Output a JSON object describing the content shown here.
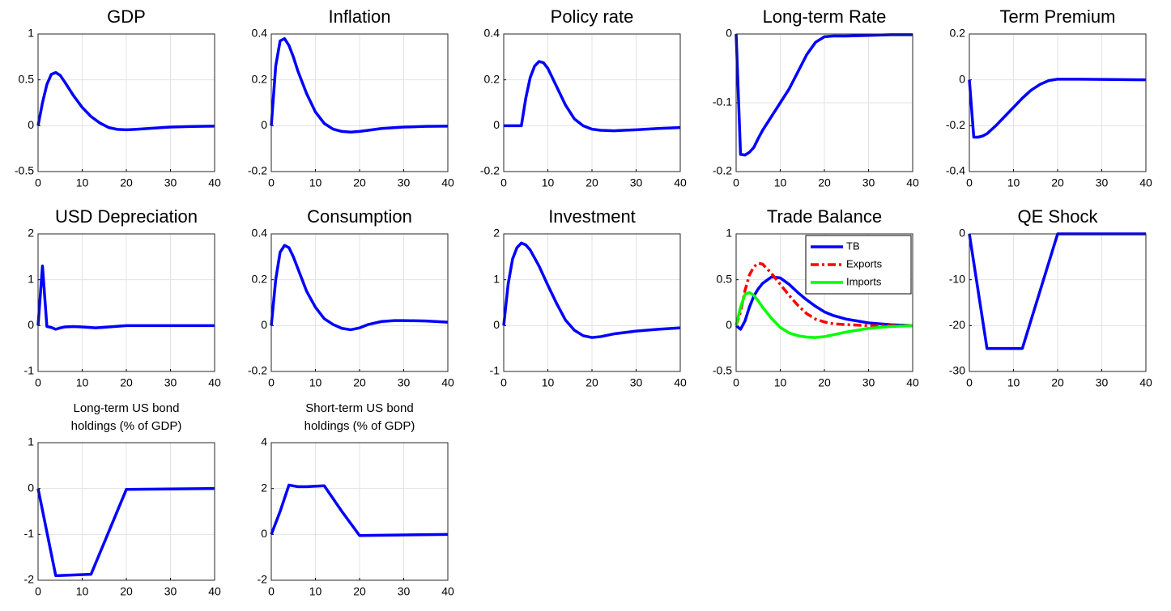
{
  "chart_data": [
    {
      "type": "line",
      "title": "GDP",
      "x": [
        0,
        1,
        2,
        3,
        4,
        5,
        6,
        8,
        10,
        12,
        14,
        16,
        18,
        20,
        22,
        25,
        30,
        35,
        40
      ],
      "values": [
        0,
        0.25,
        0.45,
        0.56,
        0.58,
        0.55,
        0.48,
        0.33,
        0.2,
        0.1,
        0.03,
        -0.02,
        -0.04,
        -0.045,
        -0.04,
        -0.03,
        -0.015,
        -0.008,
        -0.005
      ],
      "color": "#0000ff",
      "xlim": [
        0,
        40
      ],
      "xticks": [
        0,
        10,
        20,
        30,
        40
      ],
      "ylim": [
        -0.5,
        1
      ],
      "yticks": [
        -0.5,
        0,
        0.5,
        1
      ],
      "grid": true
    },
    {
      "type": "line",
      "title": "Inflation",
      "x": [
        0,
        1,
        2,
        3,
        4,
        5,
        6,
        8,
        10,
        12,
        14,
        16,
        18,
        20,
        22,
        25,
        30,
        35,
        40
      ],
      "values": [
        0,
        0.26,
        0.37,
        0.38,
        0.35,
        0.3,
        0.24,
        0.14,
        0.06,
        0.01,
        -0.015,
        -0.025,
        -0.028,
        -0.025,
        -0.02,
        -0.012,
        -0.006,
        -0.003,
        -0.002
      ],
      "color": "#0000ff",
      "xlim": [
        0,
        40
      ],
      "xticks": [
        0,
        10,
        20,
        30,
        40
      ],
      "ylim": [
        -0.2,
        0.4
      ],
      "yticks": [
        -0.2,
        0,
        0.2,
        0.4
      ],
      "grid": true
    },
    {
      "type": "line",
      "title": "Policy rate",
      "x": [
        0,
        1,
        2,
        3,
        4,
        5,
        6,
        7,
        8,
        9,
        10,
        12,
        14,
        16,
        18,
        20,
        22,
        25,
        30,
        35,
        40
      ],
      "values": [
        0,
        0,
        0,
        0,
        0,
        0.12,
        0.21,
        0.26,
        0.28,
        0.275,
        0.25,
        0.17,
        0.09,
        0.03,
        0,
        -0.015,
        -0.02,
        -0.022,
        -0.018,
        -0.012,
        -0.008
      ],
      "color": "#0000ff",
      "xlim": [
        0,
        40
      ],
      "xticks": [
        0,
        10,
        20,
        30,
        40
      ],
      "ylim": [
        -0.2,
        0.4
      ],
      "yticks": [
        -0.2,
        0,
        0.2,
        0.4
      ],
      "grid": true
    },
    {
      "type": "line",
      "title": "Long-term Rate",
      "x": [
        0,
        1,
        2,
        3,
        4,
        5,
        6,
        8,
        10,
        12,
        14,
        16,
        18,
        20,
        22,
        25,
        30,
        35,
        40
      ],
      "values": [
        0,
        -0.175,
        -0.176,
        -0.172,
        -0.165,
        -0.152,
        -0.14,
        -0.12,
        -0.1,
        -0.08,
        -0.055,
        -0.03,
        -0.012,
        -0.004,
        -0.003,
        -0.003,
        -0.002,
        -0.001,
        -0.001
      ],
      "color": "#0000ff",
      "xlim": [
        0,
        40
      ],
      "xticks": [
        0,
        10,
        20,
        30,
        40
      ],
      "ylim": [
        -0.2,
        0
      ],
      "yticks": [
        -0.2,
        -0.1,
        0
      ],
      "grid": true
    },
    {
      "type": "line",
      "title": "Term Premium",
      "x": [
        0,
        1,
        2,
        3,
        4,
        6,
        8,
        10,
        12,
        14,
        16,
        18,
        20,
        25,
        30,
        35,
        40
      ],
      "values": [
        0,
        -0.25,
        -0.25,
        -0.245,
        -0.235,
        -0.2,
        -0.16,
        -0.12,
        -0.08,
        -0.045,
        -0.02,
        -0.003,
        0.003,
        0.003,
        0.002,
        0.001,
        0
      ],
      "color": "#0000ff",
      "xlim": [
        0,
        40
      ],
      "xticks": [
        0,
        10,
        20,
        30,
        40
      ],
      "ylim": [
        -0.4,
        0.2
      ],
      "yticks": [
        -0.4,
        -0.2,
        0,
        0.2
      ],
      "grid": true
    },
    {
      "type": "line",
      "title": "USD Depreciation",
      "x": [
        0,
        1,
        2,
        3,
        4,
        5,
        6,
        8,
        10,
        13,
        16,
        20,
        25,
        30,
        35,
        40
      ],
      "values": [
        0,
        1.3,
        -0.02,
        -0.04,
        -0.08,
        -0.05,
        -0.03,
        -0.02,
        -0.03,
        -0.05,
        -0.03,
        0,
        0,
        0,
        0,
        0
      ],
      "color": "#0000ff",
      "xlim": [
        0,
        40
      ],
      "xticks": [
        0,
        10,
        20,
        30,
        40
      ],
      "ylim": [
        -1,
        2
      ],
      "yticks": [
        -1,
        0,
        1,
        2
      ],
      "grid": true
    },
    {
      "type": "line",
      "title": "Consumption",
      "x": [
        0,
        1,
        2,
        3,
        4,
        5,
        6,
        8,
        10,
        12,
        14,
        16,
        18,
        20,
        22,
        25,
        28,
        30,
        35,
        40
      ],
      "values": [
        0,
        0.2,
        0.32,
        0.35,
        0.34,
        0.3,
        0.25,
        0.15,
        0.08,
        0.03,
        0.005,
        -0.012,
        -0.018,
        -0.01,
        0.005,
        0.018,
        0.022,
        0.022,
        0.02,
        0.015
      ],
      "color": "#0000ff",
      "xlim": [
        0,
        40
      ],
      "xticks": [
        0,
        10,
        20,
        30,
        40
      ],
      "ylim": [
        -0.2,
        0.4
      ],
      "yticks": [
        -0.2,
        0,
        0.2,
        0.4
      ],
      "grid": true
    },
    {
      "type": "line",
      "title": "Investment",
      "x": [
        0,
        1,
        2,
        3,
        4,
        5,
        6,
        8,
        10,
        12,
        14,
        16,
        18,
        20,
        22,
        25,
        30,
        35,
        40
      ],
      "values": [
        0,
        0.9,
        1.45,
        1.7,
        1.8,
        1.76,
        1.65,
        1.3,
        0.88,
        0.48,
        0.12,
        -0.1,
        -0.22,
        -0.26,
        -0.24,
        -0.18,
        -0.12,
        -0.08,
        -0.05
      ],
      "color": "#0000ff",
      "xlim": [
        0,
        40
      ],
      "xticks": [
        0,
        10,
        20,
        30,
        40
      ],
      "ylim": [
        -1,
        2
      ],
      "yticks": [
        -1,
        0,
        1,
        2
      ],
      "grid": true
    },
    {
      "type": "line",
      "title": "Trade Balance",
      "x": [
        0,
        1,
        2,
        3,
        4,
        5,
        6,
        8,
        10,
        12,
        14,
        16,
        18,
        20,
        22,
        25,
        30,
        35,
        40
      ],
      "series": [
        {
          "name": "TB",
          "color": "#0000ff",
          "style": "solid",
          "values": [
            0,
            -0.04,
            0.05,
            0.2,
            0.32,
            0.4,
            0.46,
            0.53,
            0.52,
            0.45,
            0.36,
            0.28,
            0.21,
            0.15,
            0.11,
            0.07,
            0.03,
            0.01,
            0
          ]
        },
        {
          "name": "Exports",
          "color": "#ff0000",
          "style": "dashdot",
          "values": [
            0,
            0.15,
            0.38,
            0.55,
            0.64,
            0.68,
            0.67,
            0.57,
            0.45,
            0.33,
            0.22,
            0.13,
            0.07,
            0.04,
            0.02,
            0.01,
            0,
            0,
            0
          ]
        },
        {
          "name": "Imports",
          "color": "#00ff00",
          "style": "solid",
          "values": [
            0,
            0.2,
            0.34,
            0.36,
            0.33,
            0.27,
            0.2,
            0.08,
            -0.02,
            -0.08,
            -0.11,
            -0.125,
            -0.13,
            -0.12,
            -0.1,
            -0.07,
            -0.03,
            -0.01,
            0
          ]
        }
      ],
      "legend": "northeast",
      "xlim": [
        0,
        40
      ],
      "xticks": [
        0,
        10,
        20,
        30,
        40
      ],
      "ylim": [
        -0.5,
        1
      ],
      "yticks": [
        -0.5,
        0,
        0.5,
        1
      ],
      "grid": true
    },
    {
      "type": "line",
      "title": "QE Shock",
      "x": [
        0,
        4,
        12,
        20,
        40
      ],
      "values": [
        0,
        -25,
        -25,
        0,
        0
      ],
      "color": "#0000ff",
      "xlim": [
        0,
        40
      ],
      "xticks": [
        0,
        10,
        20,
        30,
        40
      ],
      "ylim": [
        -30,
        0
      ],
      "yticks": [
        -30,
        -20,
        -10,
        0
      ],
      "grid": true
    },
    {
      "type": "line",
      "title": [
        "Long-term US bond",
        "holdings (% of GDP)"
      ],
      "x": [
        0,
        4,
        12,
        20,
        40
      ],
      "values": [
        0,
        -1.9,
        -1.87,
        -0.02,
        0
      ],
      "color": "#0000ff",
      "xlim": [
        0,
        40
      ],
      "xticks": [
        0,
        10,
        20,
        30,
        40
      ],
      "ylim": [
        -2,
        1
      ],
      "yticks": [
        -2,
        -1,
        0,
        1
      ],
      "grid": true
    },
    {
      "type": "line",
      "title": [
        "Short-term US bond",
        "holdings (% of GDP)"
      ],
      "x": [
        0,
        2,
        4,
        6,
        8,
        12,
        16,
        20,
        40
      ],
      "values": [
        0,
        1,
        2.15,
        2.08,
        2.08,
        2.12,
        1,
        -0.05,
        0
      ],
      "color": "#0000ff",
      "xlim": [
        0,
        40
      ],
      "xticks": [
        0,
        10,
        20,
        30,
        40
      ],
      "ylim": [
        -2,
        4
      ],
      "yticks": [
        -2,
        0,
        2,
        4
      ],
      "grid": true
    }
  ]
}
